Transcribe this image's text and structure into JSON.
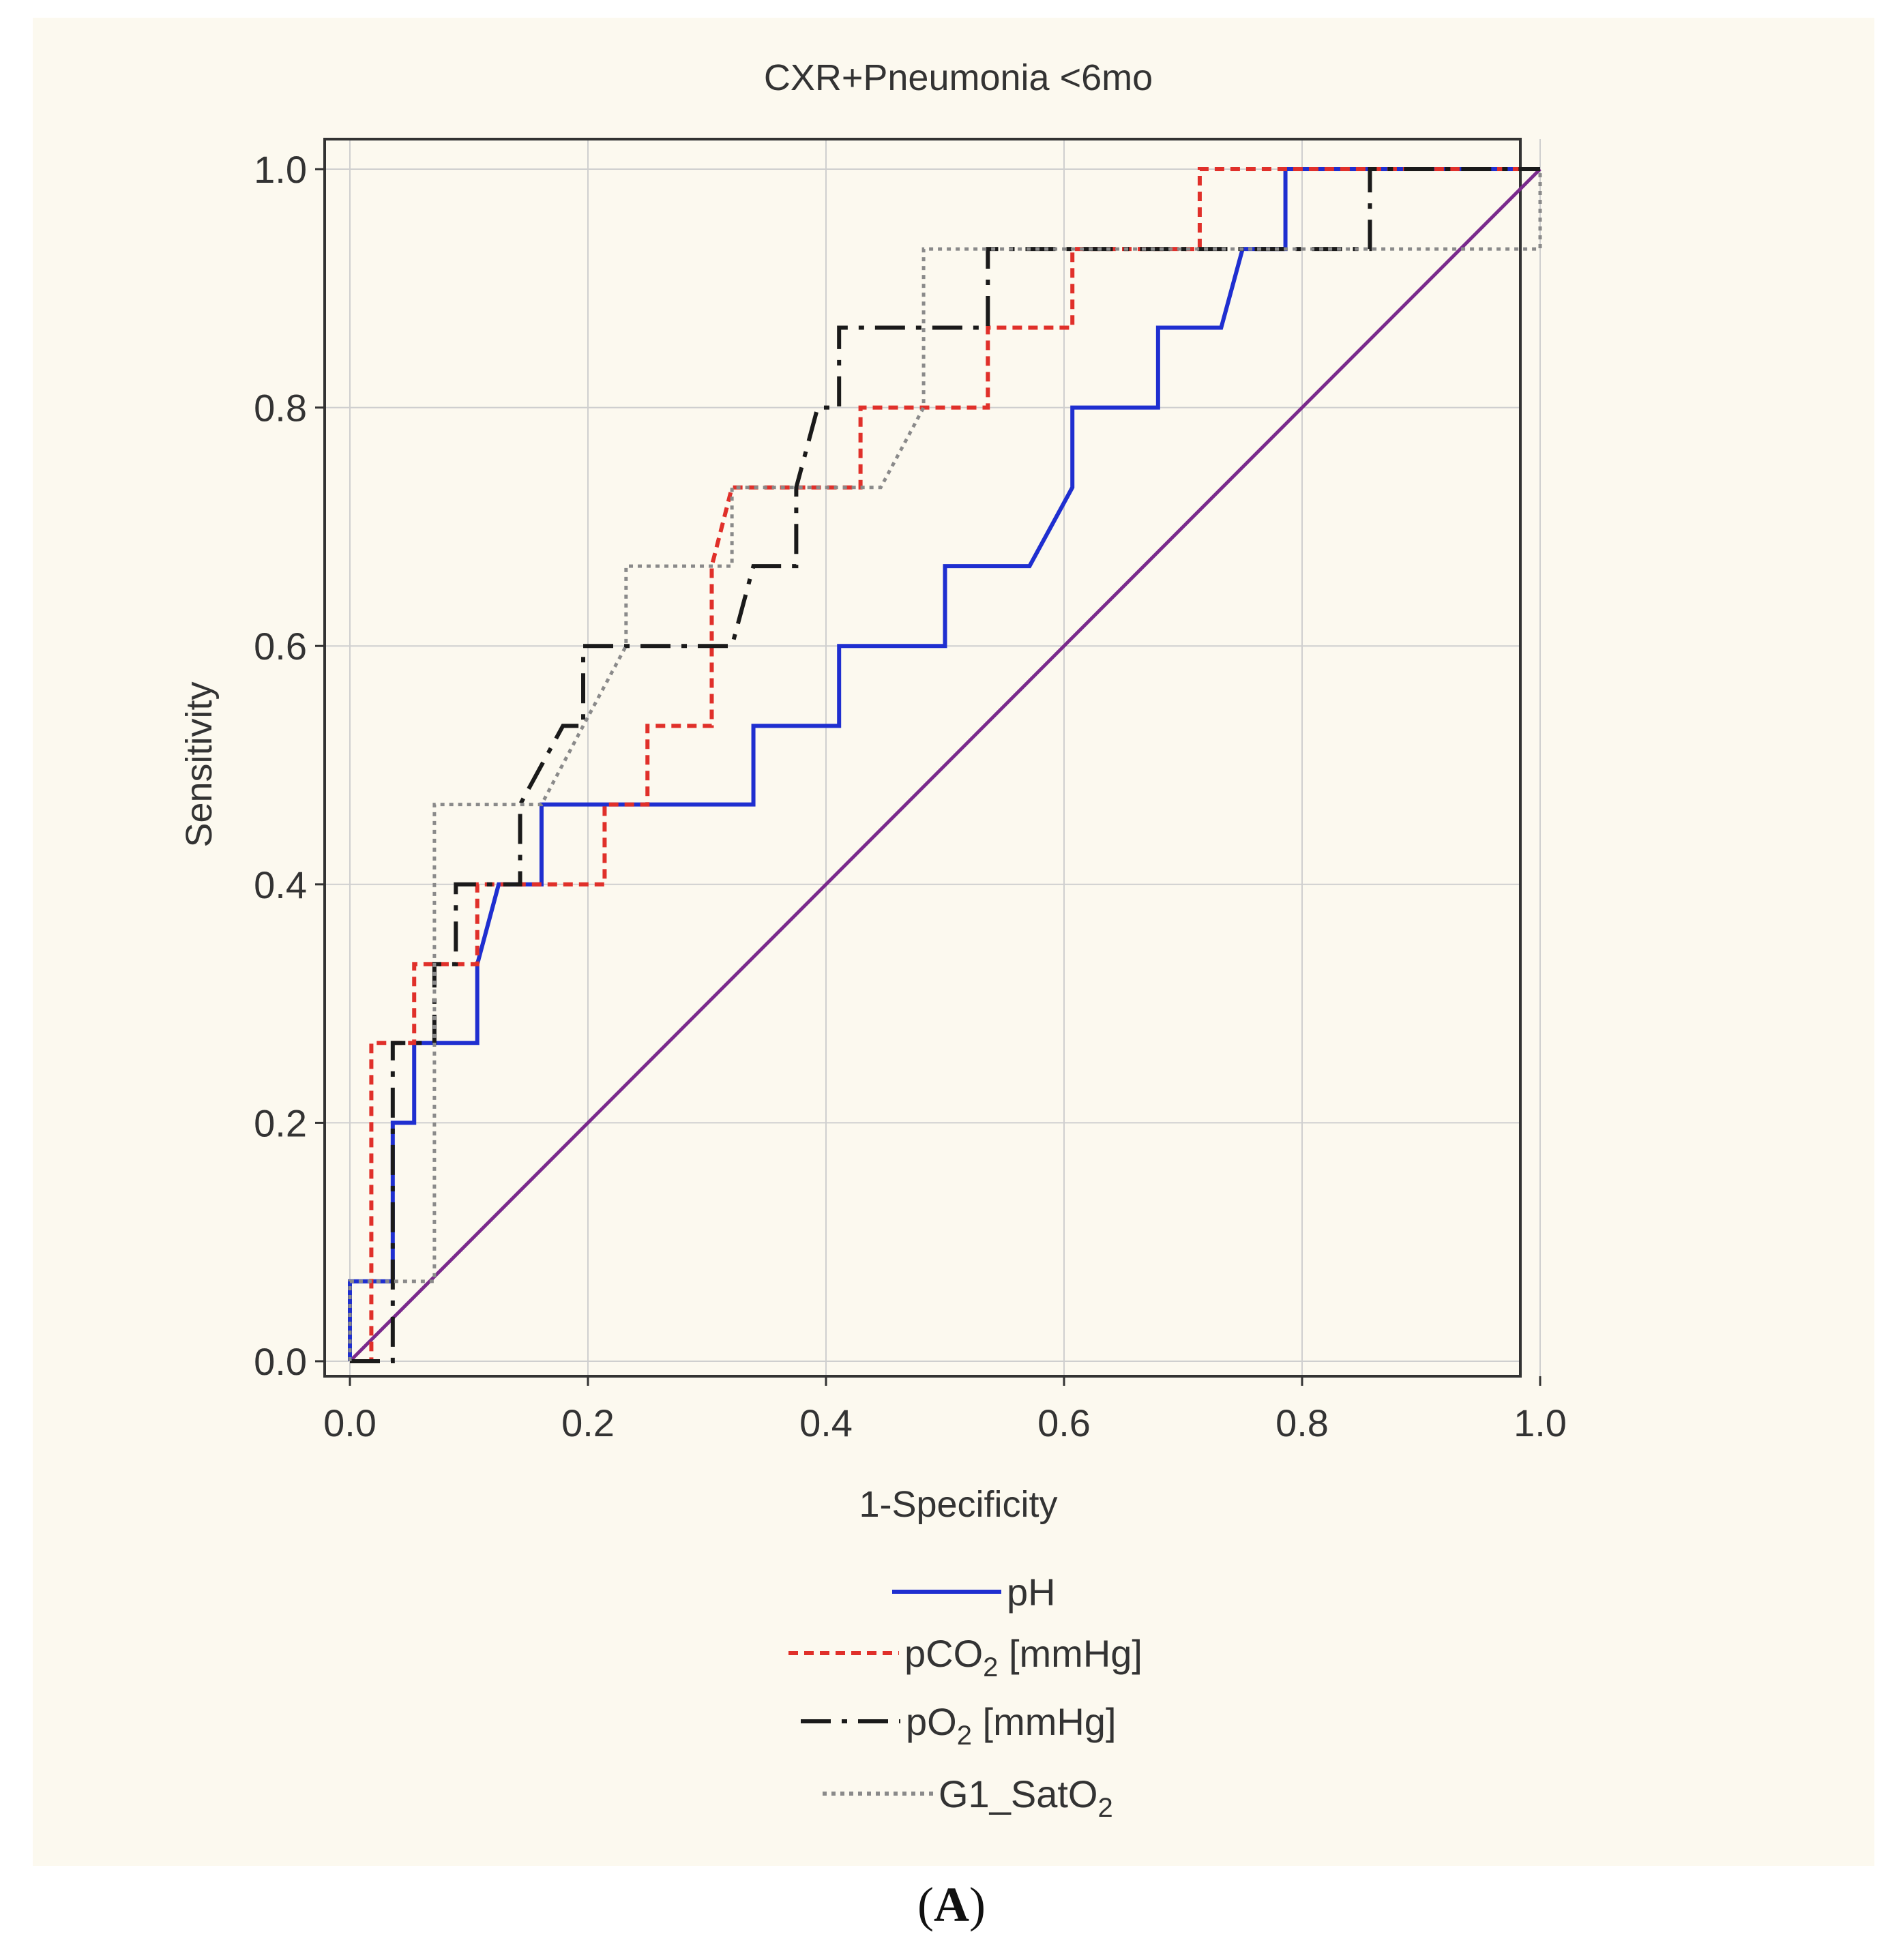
{
  "caption": {
    "letter": "A",
    "open": "(",
    "close": ")"
  },
  "chart_data": {
    "type": "line",
    "title": "CXR+Pneumonia <6mo",
    "xlabel": "1-Specificity",
    "ylabel": "Sensitivity",
    "xlim": [
      0,
      1
    ],
    "ylim": [
      0,
      1
    ],
    "xticks": [
      0,
      0.2,
      0.4,
      0.6,
      0.8,
      1.0
    ],
    "yticks": [
      0,
      0.2,
      0.4,
      0.6,
      0.8,
      1.0
    ],
    "xtick_labels": [
      "0.0",
      "0.2",
      "0.4",
      "0.6",
      "0.8",
      "1.0"
    ],
    "ytick_labels": [
      "0.0",
      "0.2",
      "0.4",
      "0.6",
      "0.8",
      "1.0"
    ],
    "grid": true,
    "legend_position": "bottom-center",
    "reference_line": {
      "name": "reference",
      "color": "#7a2a8c",
      "points": [
        [
          0,
          0
        ],
        [
          1,
          1
        ]
      ]
    },
    "series": [
      {
        "name": "pH",
        "base": "pH",
        "sub": "",
        "suffix": "",
        "color": "#1f2fd0",
        "style": "solid",
        "points": [
          [
            0,
            0
          ],
          [
            0,
            0.067
          ],
          [
            0.036,
            0.067
          ],
          [
            0.036,
            0.2
          ],
          [
            0.054,
            0.2
          ],
          [
            0.054,
            0.267
          ],
          [
            0.107,
            0.267
          ],
          [
            0.107,
            0.333
          ],
          [
            0.125,
            0.4
          ],
          [
            0.161,
            0.4
          ],
          [
            0.161,
            0.467
          ],
          [
            0.339,
            0.467
          ],
          [
            0.339,
            0.533
          ],
          [
            0.411,
            0.533
          ],
          [
            0.411,
            0.6
          ],
          [
            0.5,
            0.6
          ],
          [
            0.5,
            0.667
          ],
          [
            0.571,
            0.667
          ],
          [
            0.607,
            0.733
          ],
          [
            0.607,
            0.8
          ],
          [
            0.679,
            0.8
          ],
          [
            0.679,
            0.867
          ],
          [
            0.732,
            0.867
          ],
          [
            0.75,
            0.933
          ],
          [
            0.786,
            0.933
          ],
          [
            0.786,
            1
          ],
          [
            1,
            1
          ]
        ]
      },
      {
        "name": "pCO2 [mmHg]",
        "base": "pCO",
        "sub": "2",
        "suffix": " [mmHg]",
        "color": "#e0302a",
        "style": "dashed",
        "points": [
          [
            0,
            0
          ],
          [
            0.018,
            0
          ],
          [
            0.018,
            0.267
          ],
          [
            0.054,
            0.267
          ],
          [
            0.054,
            0.333
          ],
          [
            0.107,
            0.333
          ],
          [
            0.107,
            0.4
          ],
          [
            0.214,
            0.4
          ],
          [
            0.214,
            0.467
          ],
          [
            0.25,
            0.467
          ],
          [
            0.25,
            0.533
          ],
          [
            0.304,
            0.533
          ],
          [
            0.304,
            0.667
          ],
          [
            0.321,
            0.733
          ],
          [
            0.429,
            0.733
          ],
          [
            0.429,
            0.8
          ],
          [
            0.536,
            0.8
          ],
          [
            0.536,
            0.867
          ],
          [
            0.607,
            0.867
          ],
          [
            0.607,
            0.933
          ],
          [
            0.714,
            0.933
          ],
          [
            0.714,
            1
          ],
          [
            1,
            1
          ]
        ]
      },
      {
        "name": "pO2 [mmHg]",
        "base": "pO",
        "sub": "2",
        "suffix": " [mmHg]",
        "color": "#1a1a1a",
        "style": "dashdot",
        "points": [
          [
            0,
            0
          ],
          [
            0.036,
            0
          ],
          [
            0.036,
            0.2
          ],
          [
            0.036,
            0.267
          ],
          [
            0.071,
            0.267
          ],
          [
            0.071,
            0.333
          ],
          [
            0.089,
            0.333
          ],
          [
            0.089,
            0.4
          ],
          [
            0.143,
            0.4
          ],
          [
            0.143,
            0.467
          ],
          [
            0.179,
            0.533
          ],
          [
            0.196,
            0.533
          ],
          [
            0.196,
            0.6
          ],
          [
            0.321,
            0.6
          ],
          [
            0.339,
            0.667
          ],
          [
            0.375,
            0.667
          ],
          [
            0.375,
            0.733
          ],
          [
            0.393,
            0.8
          ],
          [
            0.411,
            0.8
          ],
          [
            0.411,
            0.867
          ],
          [
            0.536,
            0.867
          ],
          [
            0.536,
            0.933
          ],
          [
            0.857,
            0.933
          ],
          [
            0.857,
            1
          ],
          [
            1,
            1
          ]
        ]
      },
      {
        "name": "G1_SatO2",
        "base": "G1_SatO",
        "sub": "2",
        "suffix": "",
        "color": "#8a8a8a",
        "style": "dotted",
        "points": [
          [
            0,
            0
          ],
          [
            0,
            0.067
          ],
          [
            0.071,
            0.067
          ],
          [
            0.071,
            0.467
          ],
          [
            0.161,
            0.467
          ],
          [
            0.196,
            0.533
          ],
          [
            0.232,
            0.6
          ],
          [
            0.232,
            0.667
          ],
          [
            0.321,
            0.667
          ],
          [
            0.321,
            0.733
          ],
          [
            0.446,
            0.733
          ],
          [
            0.482,
            0.8
          ],
          [
            0.482,
            0.933
          ],
          [
            1,
            0.933
          ],
          [
            1,
            1
          ]
        ]
      }
    ]
  }
}
